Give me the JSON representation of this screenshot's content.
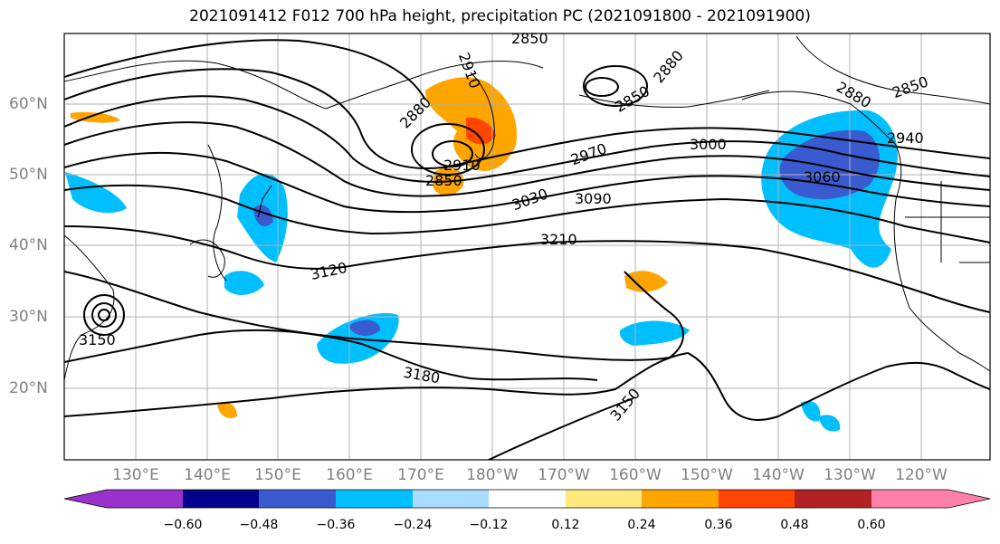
{
  "title": "2021091412 F012 700 hPa height, precipitation PC (2021091800 - 2021091900)",
  "lat_labels": [
    "60°N",
    "50°N",
    "40°N",
    "30°N",
    "20°N"
  ],
  "lon_labels": [
    "130°E",
    "140°E",
    "150°E",
    "160°E",
    "170°E",
    "180°W",
    "170°W",
    "160°W",
    "150°W",
    "140°W",
    "130°W",
    "120°W"
  ],
  "contour_labels": [
    "2850",
    "2880",
    "2910",
    "2850",
    "2880",
    "2850",
    "2940",
    "2880",
    "2850",
    "2970",
    "3000",
    "3030",
    "3090",
    "3060",
    "2910",
    "3210",
    "3120",
    "3150",
    "3180",
    "3150"
  ],
  "colorbar": {
    "colors": [
      "#9932cc",
      "#00008b",
      "#3a5bd0",
      "#00bfff",
      "#aadcff",
      "#ffffff",
      "#ffe97f",
      "#ffa500",
      "#ff4500",
      "#b22222",
      "#ff80aa"
    ],
    "tick_labels": [
      "−0.60",
      "−0.48",
      "−0.36",
      "−0.24",
      "−0.12",
      "0.12",
      "0.24",
      "0.36",
      "0.48",
      "0.60"
    ]
  }
}
